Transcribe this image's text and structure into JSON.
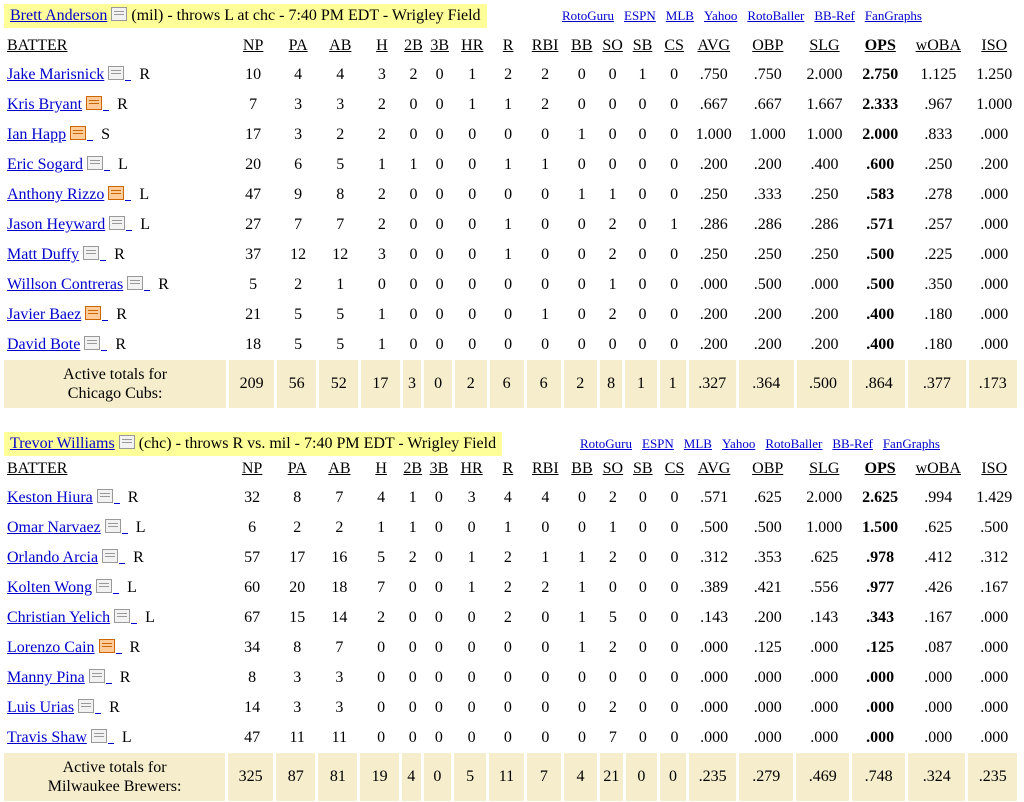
{
  "columns": [
    "BATTER",
    "NP",
    "PA",
    "AB",
    "H",
    "2B",
    "3B",
    "HR",
    "R",
    "RBI",
    "BB",
    "SO",
    "SB",
    "CS",
    "AVG",
    "OBP",
    "SLG",
    "OPS",
    "wOBA",
    "ISO"
  ],
  "links": [
    "RotoGuru",
    "ESPN",
    "MLB",
    "Yahoo",
    "RotoBaller",
    "BB-Ref",
    "FanGraphs"
  ],
  "matchups": [
    {
      "pitcher": "Brett Anderson",
      "pitcher_info": "(mil) - throws L at chc - 7:40 PM EDT - Wrigley Field",
      "batters": [
        {
          "name": "Jake Marisnick",
          "hand": "R",
          "hot": false,
          "stats": [
            "10",
            "4",
            "4",
            "3",
            "2",
            "0",
            "1",
            "2",
            "2",
            "0",
            "0",
            "1",
            "0",
            ".750",
            ".750",
            "2.000",
            "2.750",
            "1.125",
            "1.250"
          ]
        },
        {
          "name": "Kris Bryant",
          "hand": "R",
          "hot": true,
          "stats": [
            "7",
            "3",
            "3",
            "2",
            "0",
            "0",
            "1",
            "1",
            "2",
            "0",
            "0",
            "0",
            "0",
            ".667",
            ".667",
            "1.667",
            "2.333",
            ".967",
            "1.000"
          ]
        },
        {
          "name": "Ian Happ",
          "hand": "S",
          "hot": true,
          "stats": [
            "17",
            "3",
            "2",
            "2",
            "0",
            "0",
            "0",
            "0",
            "0",
            "1",
            "0",
            "0",
            "0",
            "1.000",
            "1.000",
            "1.000",
            "2.000",
            ".833",
            ".000"
          ]
        },
        {
          "name": "Eric Sogard",
          "hand": "L",
          "hot": false,
          "stats": [
            "20",
            "6",
            "5",
            "1",
            "1",
            "0",
            "0",
            "1",
            "1",
            "0",
            "0",
            "0",
            "0",
            ".200",
            ".200",
            ".400",
            ".600",
            ".250",
            ".200"
          ]
        },
        {
          "name": "Anthony Rizzo",
          "hand": "L",
          "hot": true,
          "stats": [
            "47",
            "9",
            "8",
            "2",
            "0",
            "0",
            "0",
            "0",
            "0",
            "1",
            "1",
            "0",
            "0",
            ".250",
            ".333",
            ".250",
            ".583",
            ".278",
            ".000"
          ]
        },
        {
          "name": "Jason Heyward",
          "hand": "L",
          "hot": false,
          "stats": [
            "27",
            "7",
            "7",
            "2",
            "0",
            "0",
            "0",
            "1",
            "0",
            "0",
            "2",
            "0",
            "1",
            ".286",
            ".286",
            ".286",
            ".571",
            ".257",
            ".000"
          ]
        },
        {
          "name": "Matt Duffy",
          "hand": "R",
          "hot": false,
          "stats": [
            "37",
            "12",
            "12",
            "3",
            "0",
            "0",
            "0",
            "1",
            "0",
            "0",
            "2",
            "0",
            "0",
            ".250",
            ".250",
            ".250",
            ".500",
            ".225",
            ".000"
          ]
        },
        {
          "name": "Willson Contreras",
          "hand": "R",
          "hot": false,
          "stats": [
            "5",
            "2",
            "1",
            "0",
            "0",
            "0",
            "0",
            "0",
            "0",
            "0",
            "1",
            "0",
            "0",
            ".000",
            ".500",
            ".000",
            ".500",
            ".350",
            ".000"
          ]
        },
        {
          "name": "Javier Baez",
          "hand": "R",
          "hot": true,
          "stats": [
            "21",
            "5",
            "5",
            "1",
            "0",
            "0",
            "0",
            "0",
            "1",
            "0",
            "2",
            "0",
            "0",
            ".200",
            ".200",
            ".200",
            ".400",
            ".180",
            ".000"
          ]
        },
        {
          "name": "David Bote",
          "hand": "R",
          "hot": false,
          "stats": [
            "18",
            "5",
            "5",
            "1",
            "0",
            "0",
            "0",
            "0",
            "0",
            "0",
            "0",
            "0",
            "0",
            ".200",
            ".200",
            ".200",
            ".400",
            ".180",
            ".000"
          ]
        }
      ],
      "totals_label_1": "Active totals for",
      "totals_label_2": "Chicago Cubs:",
      "totals": [
        "209",
        "56",
        "52",
        "17",
        "3",
        "0",
        "2",
        "6",
        "6",
        "2",
        "8",
        "1",
        "1",
        ".327",
        ".364",
        ".500",
        ".864",
        ".377",
        ".173"
      ]
    },
    {
      "pitcher": "Trevor Williams",
      "pitcher_info": "(chc) - throws R vs. mil - 7:40 PM EDT - Wrigley Field",
      "batters": [
        {
          "name": "Keston Hiura",
          "hand": "R",
          "hot": false,
          "stats": [
            "32",
            "8",
            "7",
            "4",
            "1",
            "0",
            "3",
            "4",
            "4",
            "0",
            "2",
            "0",
            "0",
            ".571",
            ".625",
            "2.000",
            "2.625",
            ".994",
            "1.429"
          ]
        },
        {
          "name": "Omar Narvaez",
          "hand": "L",
          "hot": false,
          "stats": [
            "6",
            "2",
            "2",
            "1",
            "1",
            "0",
            "0",
            "1",
            "0",
            "0",
            "1",
            "0",
            "0",
            ".500",
            ".500",
            "1.000",
            "1.500",
            ".625",
            ".500"
          ]
        },
        {
          "name": "Orlando Arcia",
          "hand": "R",
          "hot": false,
          "stats": [
            "57",
            "17",
            "16",
            "5",
            "2",
            "0",
            "1",
            "2",
            "1",
            "1",
            "2",
            "0",
            "0",
            ".312",
            ".353",
            ".625",
            ".978",
            ".412",
            ".312"
          ]
        },
        {
          "name": "Kolten Wong",
          "hand": "L",
          "hot": false,
          "stats": [
            "60",
            "20",
            "18",
            "7",
            "0",
            "0",
            "1",
            "2",
            "2",
            "1",
            "0",
            "0",
            "0",
            ".389",
            ".421",
            ".556",
            ".977",
            ".426",
            ".167"
          ]
        },
        {
          "name": "Christian Yelich",
          "hand": "L",
          "hot": false,
          "stats": [
            "67",
            "15",
            "14",
            "2",
            "0",
            "0",
            "0",
            "2",
            "0",
            "1",
            "5",
            "0",
            "0",
            ".143",
            ".200",
            ".143",
            ".343",
            ".167",
            ".000"
          ]
        },
        {
          "name": "Lorenzo Cain",
          "hand": "R",
          "hot": true,
          "stats": [
            "34",
            "8",
            "7",
            "0",
            "0",
            "0",
            "0",
            "0",
            "0",
            "1",
            "2",
            "0",
            "0",
            ".000",
            ".125",
            ".000",
            ".125",
            ".087",
            ".000"
          ]
        },
        {
          "name": "Manny Pina",
          "hand": "R",
          "hot": false,
          "stats": [
            "8",
            "3",
            "3",
            "0",
            "0",
            "0",
            "0",
            "0",
            "0",
            "0",
            "0",
            "0",
            "0",
            ".000",
            ".000",
            ".000",
            ".000",
            ".000",
            ".000"
          ]
        },
        {
          "name": "Luis Urias",
          "hand": "R",
          "hot": false,
          "stats": [
            "14",
            "3",
            "3",
            "0",
            "0",
            "0",
            "0",
            "0",
            "0",
            "0",
            "2",
            "0",
            "0",
            ".000",
            ".000",
            ".000",
            ".000",
            ".000",
            ".000"
          ]
        },
        {
          "name": "Travis Shaw",
          "hand": "L",
          "hot": false,
          "stats": [
            "47",
            "11",
            "11",
            "0",
            "0",
            "0",
            "0",
            "0",
            "0",
            "0",
            "7",
            "0",
            "0",
            ".000",
            ".000",
            ".000",
            ".000",
            ".000",
            ".000"
          ]
        }
      ],
      "totals_label_1": "Active totals for",
      "totals_label_2": "Milwaukee Brewers:",
      "totals": [
        "325",
        "87",
        "81",
        "19",
        "4",
        "0",
        "5",
        "11",
        "7",
        "4",
        "21",
        "0",
        "0",
        ".235",
        ".279",
        ".469",
        ".748",
        ".324",
        ".235"
      ]
    }
  ]
}
